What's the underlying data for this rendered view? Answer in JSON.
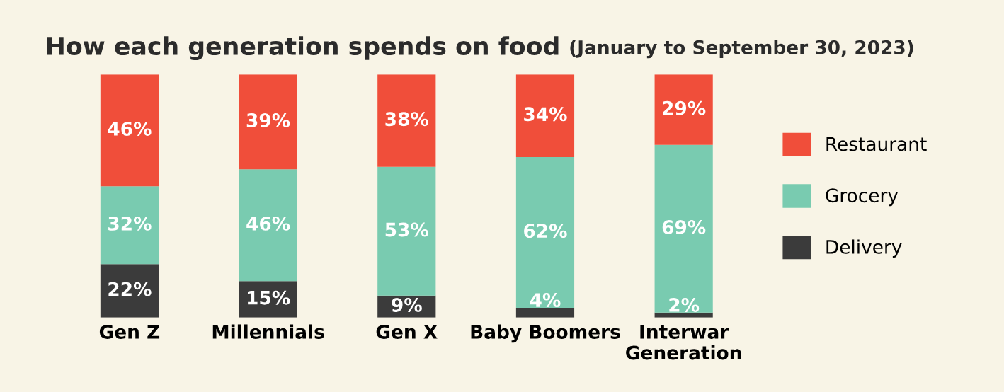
{
  "chart_data": {
    "type": "bar",
    "stacked": true,
    "title": "How each generation spends on food",
    "subtitle": "(January to September 30, 2023)",
    "categories": [
      "Gen Z",
      "Millennials",
      "Gen X",
      "Baby Boomers",
      "Interwar\nGeneration"
    ],
    "series": [
      {
        "name": "Delivery",
        "color": "#3b3b3b",
        "values": [
          22,
          15,
          9,
          4,
          2
        ],
        "value_labels": [
          "22%",
          "15%",
          "9%",
          "4%",
          "2%"
        ]
      },
      {
        "name": "Grocery",
        "color": "#79cbb0",
        "values": [
          32,
          46,
          53,
          62,
          69
        ],
        "value_labels": [
          "32%",
          "46%",
          "53%",
          "62%",
          "69%"
        ]
      },
      {
        "name": "Restaurant",
        "color": "#f04e3a",
        "values": [
          46,
          39,
          38,
          34,
          29
        ],
        "value_labels": [
          "46%",
          "39%",
          "38%",
          "34%",
          "29%"
        ]
      }
    ],
    "ylim": [
      0,
      100
    ],
    "tick_labels": "x",
    "grid": false,
    "legend": "right"
  }
}
